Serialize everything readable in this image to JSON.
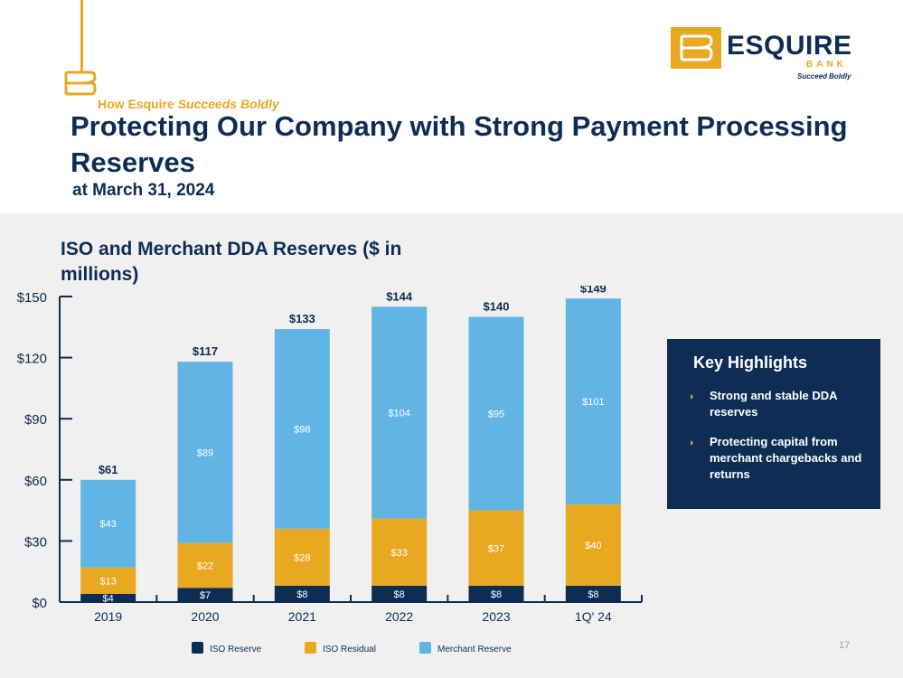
{
  "header": {
    "kicker_prefix": "How Esquire",
    "kicker_italic": "Succeeds Boldly",
    "title": "Protecting Our Company with Strong Payment Processing Reserves",
    "subtitle": "at March 31, 2024"
  },
  "logo": {
    "name": "ESQUIRE",
    "bank": "BANK",
    "tagline": "Succeed Boldly"
  },
  "chart_title": "ISO and Merchant DDA Reserves ($ in millions)",
  "highlights": {
    "title": "Key Highlights",
    "items": [
      "Strong and stable DDA reserves",
      "Protecting capital from merchant chargebacks and returns"
    ]
  },
  "page_number": "17",
  "colors": {
    "navy": "#0d2d55",
    "gold": "#e8a820",
    "light_blue": "#62b4e4"
  },
  "chart_data": {
    "type": "bar",
    "stacked": true,
    "categories": [
      "2019",
      "2020",
      "2021",
      "2022",
      "2023",
      "1Q' 24"
    ],
    "series": [
      {
        "name": "ISO Reserve",
        "color": "#0d2d55",
        "values": [
          4,
          7,
          8,
          8,
          8,
          8
        ]
      },
      {
        "name": "ISO Residual",
        "color": "#e8a820",
        "values": [
          13,
          22,
          28,
          33,
          37,
          40
        ]
      },
      {
        "name": "Merchant Reserve",
        "color": "#62b4e4",
        "values": [
          43,
          89,
          98,
          104,
          95,
          101
        ]
      }
    ],
    "totals": [
      "$61",
      "$117",
      "$133",
      "$144",
      "$140",
      "$149"
    ],
    "segment_labels": [
      [
        "$4",
        "$7",
        "$8",
        "$8",
        "$8",
        "$8"
      ],
      [
        "$13",
        "$22",
        "$28",
        "$33",
        "$37",
        "$40"
      ],
      [
        "$43",
        "$89",
        "$98",
        "$104",
        "$95",
        "$101"
      ]
    ],
    "yticks": [
      0,
      30,
      60,
      90,
      120,
      150
    ],
    "ytick_labels": [
      "$0",
      "$30",
      "$60",
      "$90",
      "$120",
      "$150"
    ],
    "ylim": [
      0,
      150
    ],
    "legend_position": "bottom",
    "grid": false
  }
}
